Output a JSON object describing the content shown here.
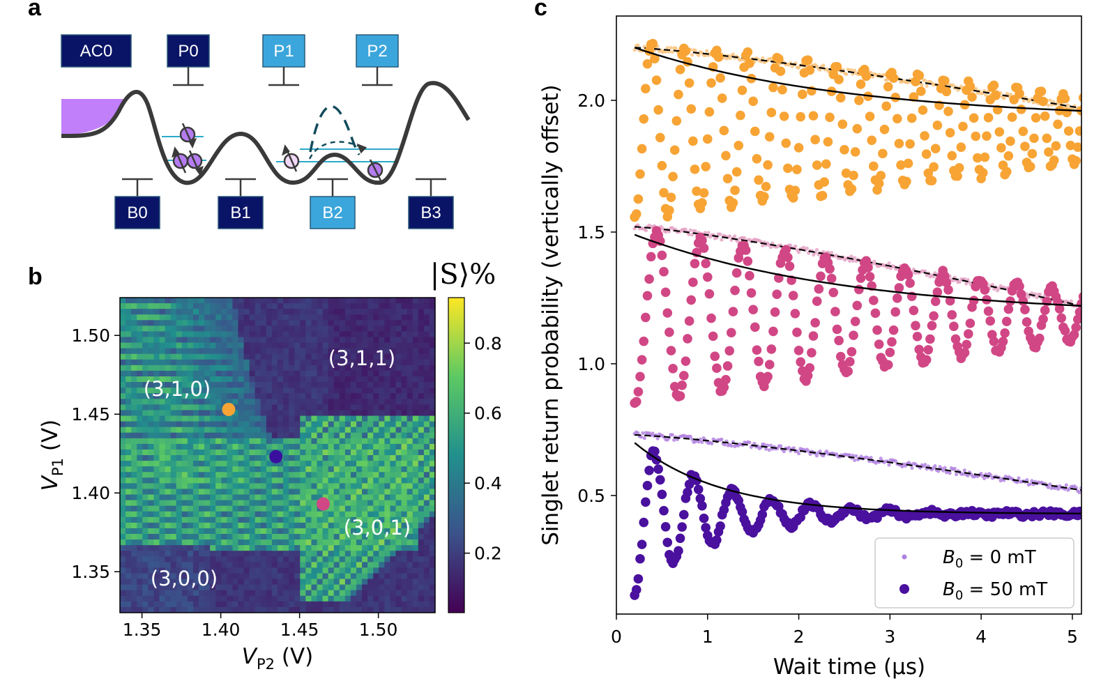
{
  "panels": {
    "a": "a",
    "b": "b",
    "c": "c"
  },
  "panel_a": {
    "top_gates": [
      {
        "label": "AC0",
        "color": "#0a1466"
      },
      {
        "label": "P0",
        "color": "#0a1466"
      },
      {
        "label": "P1",
        "color": "#3ba6dc"
      },
      {
        "label": "P2",
        "color": "#3ba6dc"
      }
    ],
    "bottom_gates": [
      {
        "label": "B0",
        "color": "#0a1466"
      },
      {
        "label": "B1",
        "color": "#0a1466"
      },
      {
        "label": "B2",
        "color": "#3ba6dc"
      },
      {
        "label": "B3",
        "color": "#0a1466"
      }
    ],
    "colors": {
      "reservoir": "#c17ffa",
      "potential": "#3a3a3a",
      "levels": "#2ca9c9",
      "barrier": "#124c5c",
      "electron": "#b57cf0",
      "electron_light": "#f2d8f7"
    }
  },
  "panel_b": {
    "colorbar_title": "|S⟩%",
    "colorbar_ticks": [
      "0.2",
      "0.4",
      "0.6",
      "0.8"
    ],
    "colorbar_range": [
      0.03,
      0.93
    ],
    "x_ticks": [
      "1.35",
      "1.40",
      "1.45",
      "1.50"
    ],
    "y_ticks": [
      "1.35",
      "1.40",
      "1.45",
      "1.50"
    ],
    "x_label": "V",
    "x_label_sub": "P2",
    "x_label_unit": " (V)",
    "y_label": "V",
    "y_label_sub": "P1",
    "y_label_unit": " (V)",
    "regions": [
      "(3,1,0)",
      "(3,1,1)",
      "(3,0,1)",
      "(3,0,0)"
    ],
    "markers": [
      {
        "vp2": 1.405,
        "vp1": 1.453,
        "color": "#f7a435"
      },
      {
        "vp2": 1.435,
        "vp1": 1.423,
        "color": "#3a0f9e"
      },
      {
        "vp2": 1.465,
        "vp1": 1.393,
        "color": "#d14785"
      }
    ]
  },
  "chart_data": {
    "type": "scatter",
    "xlabel": "Wait time (μs)",
    "ylabel": "Singlet return probability (vertically offset)",
    "xlim": [
      0,
      5.1
    ],
    "ylim": [
      0.05,
      2.32
    ],
    "x_ticks": [
      "0",
      "1",
      "2",
      "3",
      "4",
      "5"
    ],
    "y_ticks": [
      "0.5",
      "1.0",
      "1.5",
      "2.0"
    ],
    "legend": [
      {
        "label": "B",
        "sub": "0",
        "value": " = 0 mT",
        "color": "#b07fe0"
      },
      {
        "label": "B",
        "sub": "0",
        "value": " = 50 mT",
        "color": "#4a109e"
      }
    ],
    "series": [
      {
        "name": "orange B0=0 mT",
        "color": "#f7c27c",
        "decay_start": 2.2,
        "decay_end": 1.97
      },
      {
        "name": "orange B0=50 mT",
        "color": "#f7a435",
        "center": 1.89,
        "amp0": 0.34,
        "amp_end": 0.13,
        "period_start": 0.37,
        "period_end": 0.24,
        "envelope": [
          2.2,
          1.96
        ]
      },
      {
        "name": "pink B0=0 mT",
        "color": "#e3a0c3",
        "decay_start": 1.52,
        "decay_end": 1.22
      },
      {
        "name": "pink B0=50 mT",
        "color": "#d14785",
        "center": 1.18,
        "amp0": 0.33,
        "amp_end": 0.09,
        "period_start": 0.49,
        "period_end": 0.38,
        "envelope": [
          1.49,
          1.22
        ]
      },
      {
        "name": "purple B0=0 mT",
        "color": "#b07fe0",
        "decay_start": 0.73,
        "decay_end": 0.52
      },
      {
        "name": "purple B0=50 mT",
        "color": "#4a109e",
        "center": 0.43,
        "amp0": 0.3,
        "amp_end": 0.0,
        "period_start": 0.43,
        "period_end": 0.43,
        "envelope": [
          0.7,
          0.43
        ]
      }
    ]
  }
}
